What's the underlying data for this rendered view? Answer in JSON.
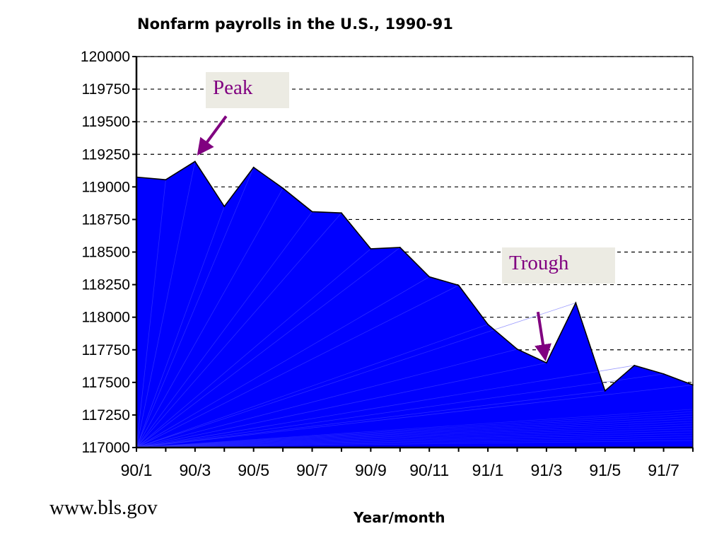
{
  "chart_data": {
    "type": "area",
    "title": "Nonfarm payrolls in the U.S., 1990-91",
    "xlabel": "Year/month",
    "ylabel": "",
    "x": [
      "90/1",
      "90/2",
      "90/3",
      "90/4",
      "90/5",
      "90/6",
      "90/7",
      "90/8",
      "90/9",
      "90/10",
      "90/11",
      "90/12",
      "91/1",
      "91/2",
      "91/3",
      "91/4",
      "91/5",
      "91/6",
      "91/7",
      "91/8"
    ],
    "x_tick_labels": [
      "90/1",
      "90/3",
      "90/5",
      "90/7",
      "90/9",
      "90/11",
      "91/1",
      "91/3",
      "91/5",
      "91/7"
    ],
    "values": [
      119075,
      119055,
      119195,
      118850,
      119150,
      118990,
      118810,
      118800,
      118525,
      118535,
      118310,
      118245,
      117945,
      117755,
      117650,
      118110,
      117435,
      117630,
      117565,
      117480
    ],
    "ylim": [
      117000,
      120000
    ],
    "y_ticks": [
      117000,
      117250,
      117500,
      117750,
      118000,
      118250,
      118500,
      118750,
      119000,
      119250,
      119500,
      119750,
      120000
    ],
    "grid": "horizontal dashed",
    "fill_color": "#0000ff",
    "annotations": [
      {
        "text": "Peak",
        "color": "#800080",
        "target": "90/3"
      },
      {
        "text": "Trough",
        "color": "#800080",
        "target": "91/3"
      }
    ]
  },
  "source": "www.bls.gov"
}
